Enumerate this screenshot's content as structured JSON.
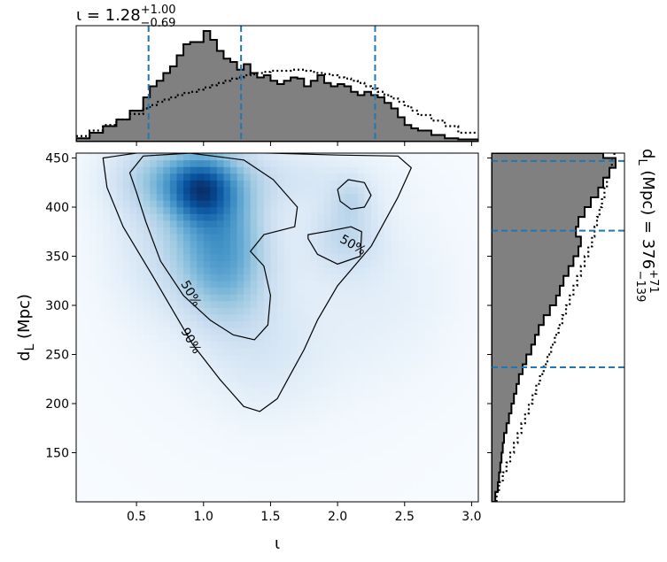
{
  "chart_data": {
    "type": "heatmap",
    "title": "ι = 1.28",
    "title_sup": "+1.00",
    "title_sub": "−0.69",
    "right_label_text": "d",
    "right_label_sub": "L",
    "right_label_rest": " (Mpc) = 376",
    "right_label_sup": "+71",
    "right_label_subval": "−139",
    "xlabel": "ι",
    "ylabel_main": "d",
    "ylabel_sub": "L",
    "ylabel_rest": " (Mpc)",
    "xlim": [
      0.05,
      3.05
    ],
    "ylim": [
      100,
      455
    ],
    "xticks": [
      0.5,
      1.0,
      1.5,
      2.0,
      2.5,
      3.0
    ],
    "xtick_labels": [
      "0.5",
      "1.0",
      "1.5",
      "2.0",
      "2.5",
      "3.0"
    ],
    "yticks": [
      150,
      200,
      250,
      300,
      350,
      400,
      450
    ],
    "ytick_labels": [
      "150",
      "200",
      "250",
      "300",
      "350",
      "400",
      "450"
    ],
    "iota_quantiles": [
      0.59,
      1.28,
      2.28
    ],
    "dl_quantiles": [
      237,
      376,
      447
    ],
    "contour_levels": [
      "50%",
      "90%"
    ],
    "density_blobs": [
      {
        "x": 0.98,
        "y": 418,
        "sx": 0.16,
        "sy": 22,
        "w": 1.0
      },
      {
        "x": 0.75,
        "y": 430,
        "sx": 0.28,
        "sy": 25,
        "w": 0.55
      },
      {
        "x": 1.15,
        "y": 395,
        "sx": 0.22,
        "sy": 45,
        "w": 0.55
      },
      {
        "x": 1.2,
        "y": 330,
        "sx": 0.22,
        "sy": 40,
        "w": 0.45
      },
      {
        "x": 1.0,
        "y": 360,
        "sx": 0.25,
        "sy": 45,
        "w": 0.4
      },
      {
        "x": 2.05,
        "y": 372,
        "sx": 0.18,
        "sy": 25,
        "w": 0.35
      },
      {
        "x": 2.1,
        "y": 410,
        "sx": 0.1,
        "sy": 15,
        "w": 0.25
      },
      {
        "x": 1.6,
        "y": 430,
        "sx": 0.45,
        "sy": 22,
        "w": 0.2
      },
      {
        "x": 1.45,
        "y": 250,
        "sx": 0.3,
        "sy": 40,
        "w": 0.15
      },
      {
        "x": 0.6,
        "y": 380,
        "sx": 0.25,
        "sy": 60,
        "w": 0.18
      },
      {
        "x": 1.5,
        "y": 300,
        "sx": 0.7,
        "sy": 90,
        "w": 0.07
      },
      {
        "x": 2.3,
        "y": 320,
        "sx": 0.4,
        "sy": 60,
        "w": 0.1
      }
    ],
    "contour_90": [
      [
        0.25,
        450
      ],
      [
        0.55,
        456
      ],
      [
        1.0,
        456
      ],
      [
        1.5,
        455
      ],
      [
        2.0,
        453
      ],
      [
        2.45,
        452
      ],
      [
        2.55,
        440
      ],
      [
        2.45,
        410
      ],
      [
        2.25,
        360
      ],
      [
        2.0,
        320
      ],
      [
        1.85,
        285
      ],
      [
        1.75,
        255
      ],
      [
        1.65,
        230
      ],
      [
        1.55,
        205
      ],
      [
        1.42,
        192
      ],
      [
        1.3,
        197
      ],
      [
        1.12,
        225
      ],
      [
        0.92,
        260
      ],
      [
        0.62,
        330
      ],
      [
        0.4,
        380
      ],
      [
        0.28,
        420
      ],
      [
        0.25,
        450
      ]
    ],
    "contour_50_main": [
      [
        0.45,
        435
      ],
      [
        0.55,
        452
      ],
      [
        0.9,
        455
      ],
      [
        1.3,
        448
      ],
      [
        1.52,
        428
      ],
      [
        1.7,
        400
      ],
      [
        1.68,
        380
      ],
      [
        1.45,
        372
      ],
      [
        1.35,
        355
      ],
      [
        1.45,
        340
      ],
      [
        1.5,
        310
      ],
      [
        1.48,
        280
      ],
      [
        1.38,
        265
      ],
      [
        1.22,
        270
      ],
      [
        1.05,
        285
      ],
      [
        0.85,
        310
      ],
      [
        0.68,
        345
      ],
      [
        0.57,
        385
      ],
      [
        0.5,
        415
      ],
      [
        0.45,
        435
      ]
    ],
    "contour_50_right": [
      [
        1.78,
        372
      ],
      [
        1.95,
        376
      ],
      [
        2.1,
        380
      ],
      [
        2.18,
        375
      ],
      [
        2.17,
        350
      ],
      [
        2.0,
        342
      ],
      [
        1.85,
        352
      ],
      [
        1.78,
        368
      ],
      [
        1.78,
        372
      ]
    ],
    "contour_50_island": [
      [
        2.0,
        418
      ],
      [
        2.08,
        428
      ],
      [
        2.2,
        425
      ],
      [
        2.25,
        412
      ],
      [
        2.2,
        400
      ],
      [
        2.1,
        398
      ],
      [
        2.02,
        406
      ],
      [
        2.0,
        418
      ]
    ],
    "hist_iota_edges": [
      0.05,
      0.15,
      0.25,
      0.35,
      0.45,
      0.55,
      0.6,
      0.65,
      0.7,
      0.75,
      0.8,
      0.85,
      0.9,
      0.95,
      1.0,
      1.05,
      1.1,
      1.15,
      1.2,
      1.25,
      1.3,
      1.35,
      1.4,
      1.45,
      1.5,
      1.55,
      1.6,
      1.65,
      1.7,
      1.75,
      1.8,
      1.85,
      1.9,
      1.95,
      2.0,
      2.05,
      2.1,
      2.15,
      2.2,
      2.25,
      2.3,
      2.35,
      2.4,
      2.45,
      2.5,
      2.55,
      2.6,
      2.7,
      2.8,
      2.9,
      3.05
    ],
    "hist_iota_values": [
      0.03,
      0.08,
      0.14,
      0.2,
      0.28,
      0.4,
      0.5,
      0.55,
      0.62,
      0.68,
      0.78,
      0.88,
      0.9,
      0.9,
      1.0,
      0.92,
      0.82,
      0.75,
      0.72,
      0.65,
      0.7,
      0.62,
      0.58,
      0.6,
      0.55,
      0.52,
      0.55,
      0.58,
      0.57,
      0.5,
      0.55,
      0.6,
      0.53,
      0.5,
      0.52,
      0.5,
      0.45,
      0.42,
      0.45,
      0.42,
      0.4,
      0.35,
      0.3,
      0.22,
      0.15,
      0.12,
      0.1,
      0.06,
      0.03,
      0.02
    ],
    "hist_iota_prior": [
      0.05,
      0.1,
      0.15,
      0.2,
      0.25,
      0.3,
      0.33,
      0.36,
      0.38,
      0.4,
      0.42,
      0.44,
      0.45,
      0.47,
      0.49,
      0.51,
      0.53,
      0.55,
      0.57,
      0.58,
      0.6,
      0.61,
      0.62,
      0.63,
      0.64,
      0.64,
      0.64,
      0.65,
      0.65,
      0.64,
      0.63,
      0.62,
      0.61,
      0.6,
      0.58,
      0.57,
      0.55,
      0.53,
      0.5,
      0.48,
      0.45,
      0.42,
      0.39,
      0.36,
      0.32,
      0.28,
      0.24,
      0.19,
      0.14,
      0.08
    ],
    "hist_dl_edges": [
      100,
      110,
      120,
      130,
      140,
      150,
      160,
      170,
      180,
      190,
      200,
      210,
      220,
      230,
      240,
      250,
      260,
      270,
      280,
      290,
      300,
      310,
      320,
      330,
      340,
      350,
      360,
      370,
      380,
      390,
      400,
      410,
      420,
      430,
      440,
      450,
      455
    ],
    "hist_dl_values": [
      0.03,
      0.05,
      0.06,
      0.07,
      0.08,
      0.09,
      0.1,
      0.12,
      0.14,
      0.16,
      0.18,
      0.2,
      0.22,
      0.25,
      0.28,
      0.32,
      0.35,
      0.38,
      0.42,
      0.47,
      0.52,
      0.55,
      0.58,
      0.62,
      0.66,
      0.7,
      0.72,
      0.68,
      0.7,
      0.75,
      0.8,
      0.86,
      0.9,
      0.95,
      1.0,
      0.9
    ],
    "hist_dl_prior": [
      0.04,
      0.06,
      0.09,
      0.12,
      0.15,
      0.18,
      0.21,
      0.24,
      0.27,
      0.3,
      0.33,
      0.36,
      0.39,
      0.42,
      0.45,
      0.48,
      0.51,
      0.54,
      0.57,
      0.6,
      0.63,
      0.66,
      0.69,
      0.72,
      0.75,
      0.78,
      0.81,
      0.83,
      0.85,
      0.87,
      0.89,
      0.91,
      0.93,
      0.95,
      0.97,
      0.99
    ]
  }
}
